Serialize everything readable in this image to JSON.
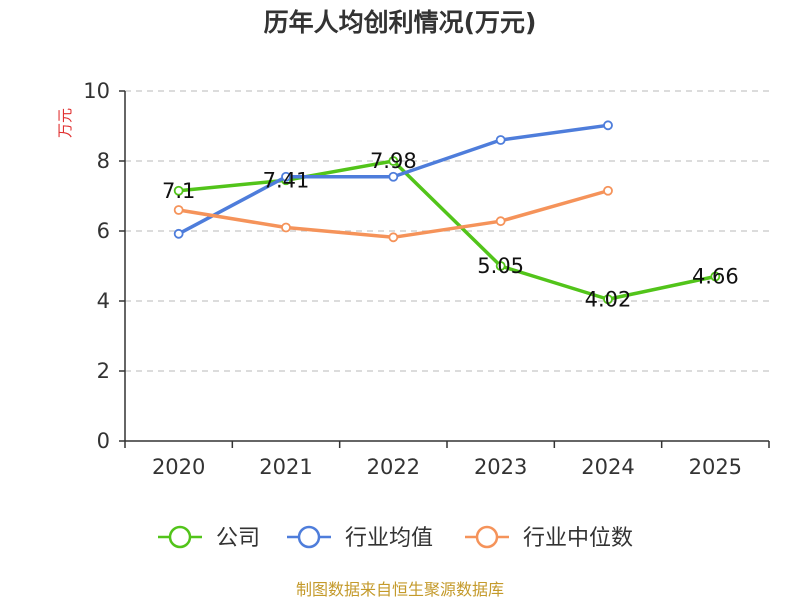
{
  "chart_data": {
    "type": "line",
    "title": "历年人均创利情况(万元)",
    "ylabel": "万元",
    "xlabel": "",
    "ylim": [
      0,
      10
    ],
    "yticks": [
      0,
      2,
      4,
      6,
      8,
      10
    ],
    "grid": true,
    "categories": [
      "2020",
      "2021",
      "2022",
      "2023",
      "2024",
      "2025"
    ],
    "series": [
      {
        "name": "公司",
        "color": "#52c41a",
        "values": [
          7.1,
          7.41,
          7.98,
          5.05,
          4.02,
          4.66
        ],
        "plotted_values": [
          7.15,
          7.45,
          8.0,
          5.0,
          4.05,
          4.7
        ],
        "labels": [
          "7.1",
          "7.41",
          "7.98",
          "5.05",
          "4.02",
          "4.66"
        ]
      },
      {
        "name": "行业均值",
        "color": "#4e7ddb",
        "values": [
          5.92,
          7.55,
          7.55,
          8.6,
          9.02,
          null
        ]
      },
      {
        "name": "行业中位数",
        "color": "#f5935a",
        "values": [
          6.6,
          6.1,
          5.82,
          6.28,
          7.15,
          null
        ]
      }
    ],
    "legend_position": "bottom-center",
    "source": "制图数据来自恒生聚源数据库"
  }
}
